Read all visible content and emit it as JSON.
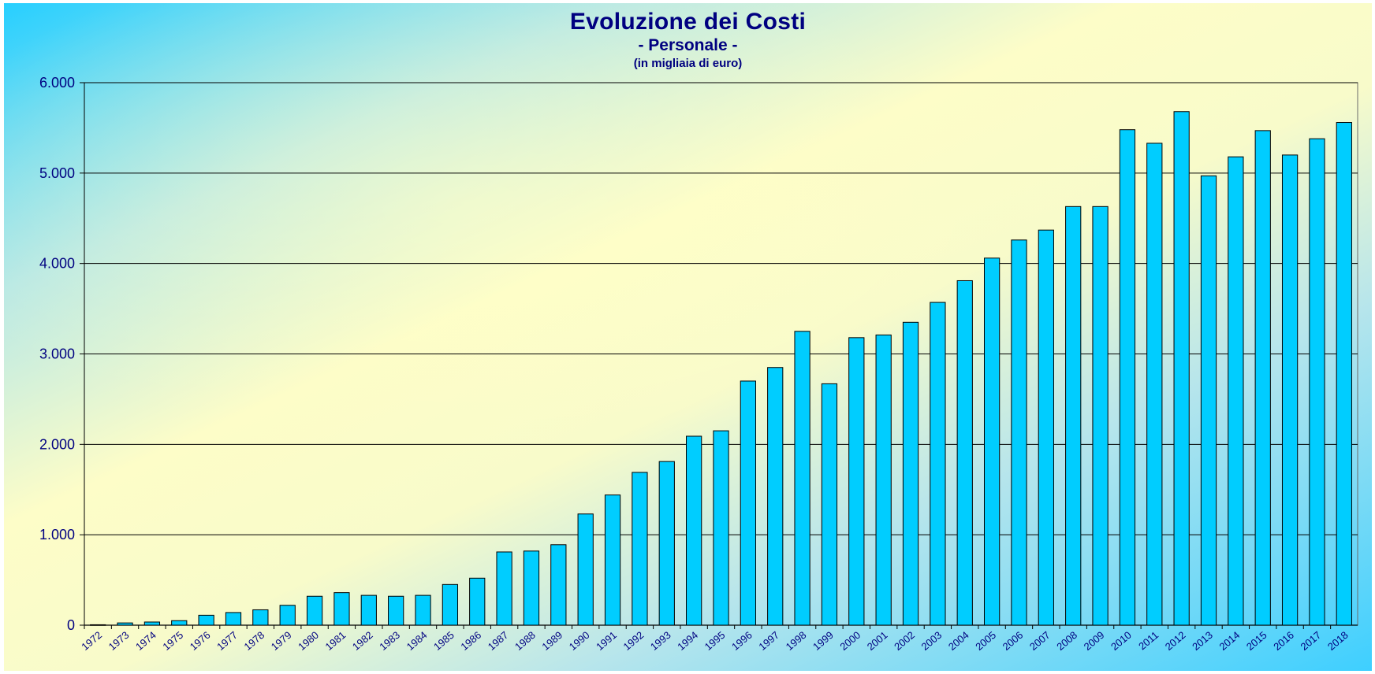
{
  "chart_data": {
    "type": "bar",
    "title": "Evoluzione dei Costi",
    "subtitle": "- Personale -",
    "unit_note": "(in migliaia di euro)",
    "xlabel": "",
    "ylabel": "",
    "ylim": [
      0,
      6000
    ],
    "yticks": [
      0,
      1000,
      2000,
      3000,
      4000,
      5000,
      6000
    ],
    "ytick_labels": [
      "0",
      "1.000",
      "2.000",
      "3.000",
      "4.000",
      "5.000",
      "6.000"
    ],
    "grid": true,
    "legend": "none",
    "categories": [
      "1972",
      "1973",
      "1974",
      "1975",
      "1976",
      "1977",
      "1978",
      "1979",
      "1980",
      "1981",
      "1982",
      "1983",
      "1984",
      "1985",
      "1986",
      "1987",
      "1988",
      "1989",
      "1990",
      "1991",
      "1992",
      "1993",
      "1994",
      "1995",
      "1996",
      "1997",
      "1998",
      "1999",
      "2000",
      "2001",
      "2002",
      "2003",
      "2004",
      "2005",
      "2006",
      "2007",
      "2008",
      "2009",
      "2010",
      "2011",
      "2012",
      "2013",
      "2014",
      "2015",
      "2016",
      "2017",
      "2018"
    ],
    "values": [
      5,
      25,
      35,
      50,
      110,
      140,
      170,
      220,
      320,
      360,
      330,
      320,
      330,
      450,
      520,
      810,
      820,
      890,
      1230,
      1440,
      1690,
      1810,
      2090,
      2150,
      2700,
      2850,
      3250,
      2670,
      3180,
      3210,
      3350,
      3570,
      3810,
      4060,
      4260,
      4370,
      4630,
      4630,
      5480,
      5330,
      5680,
      4970,
      5180,
      5470,
      5200,
      5380,
      5560
    ],
    "colors": {
      "bar": "#00cdff",
      "bar_border": "#000000",
      "text": "#000080",
      "grid": "#000000"
    }
  }
}
